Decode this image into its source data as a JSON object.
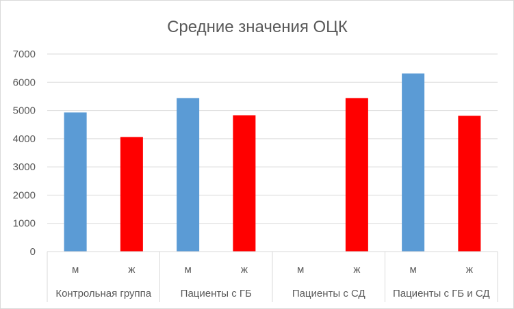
{
  "chart_data": {
    "type": "bar",
    "title": "Средние значения ОЦК",
    "xlabel": "",
    "ylabel": "",
    "ylim": [
      0,
      7000
    ],
    "yticks": [
      0,
      1000,
      2000,
      3000,
      4000,
      5000,
      6000,
      7000
    ],
    "grid": true,
    "legend": "none",
    "groups": [
      "Контрольная группа",
      "Пациенты с ГБ",
      "Пациенты с СД",
      "Пациенты с ГБ и СД"
    ],
    "subcategories": [
      "м",
      "ж"
    ],
    "colors": {
      "м": "#5b9bd5",
      "ж": "#ff0000"
    },
    "bars": [
      {
        "group": "Контрольная группа",
        "sub": "м",
        "value": 4930
      },
      {
        "group": "Контрольная группа",
        "sub": "ж",
        "value": 4060
      },
      {
        "group": "Пациенты с ГБ",
        "sub": "м",
        "value": 5440
      },
      {
        "group": "Пациенты с ГБ",
        "sub": "ж",
        "value": 4830
      },
      {
        "group": "Пациенты с СД",
        "sub": "м",
        "value": 0
      },
      {
        "group": "Пациенты с СД",
        "sub": "ж",
        "value": 5440
      },
      {
        "group": "Пациенты с ГБ и СД",
        "sub": "м",
        "value": 6310
      },
      {
        "group": "Пациенты с ГБ и СД",
        "sub": "ж",
        "value": 4810
      }
    ]
  }
}
